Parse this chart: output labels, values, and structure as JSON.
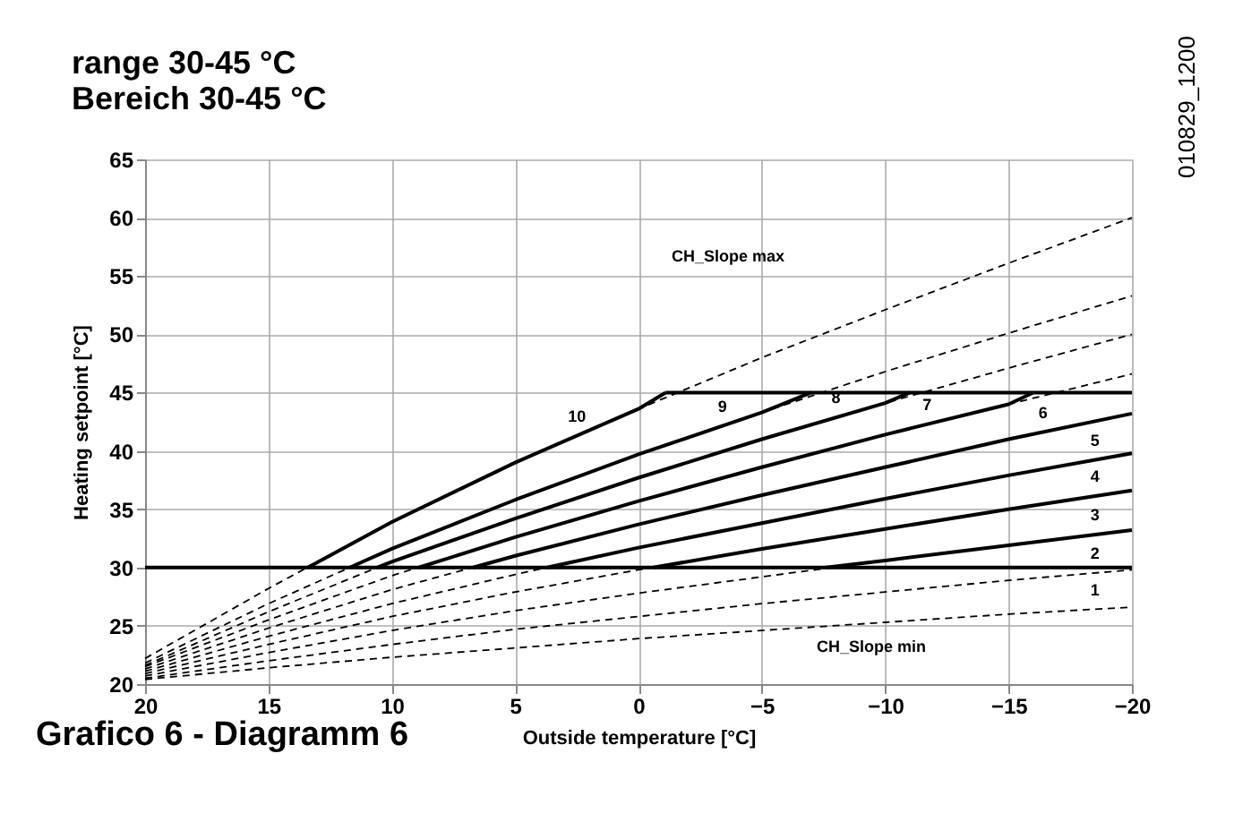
{
  "chart_data": {
    "type": "line",
    "title": "range 30-45 °C",
    "subtitle": "Bereich 30-45 °C",
    "xlabel": "Outside temperature [°C]",
    "ylabel": "Heating setpoint [°C]",
    "x": [
      20,
      15,
      10,
      5,
      0,
      -5,
      -10,
      -15,
      -20
    ],
    "xlim": [
      20,
      -20
    ],
    "xticks": [
      20,
      15,
      10,
      5,
      0,
      -5,
      -10,
      -15,
      -20
    ],
    "ylim": [
      20,
      65
    ],
    "yticks": [
      20,
      25,
      30,
      35,
      40,
      45,
      50,
      55,
      60,
      65
    ],
    "grid": true,
    "series": [
      {
        "color": "#000000",
        "line_style": "dashed",
        "values": [
          20.4,
          21.4,
          22.3,
          23.1,
          23.9,
          24.6,
          25.3,
          26.0,
          26.6
        ]
      },
      {
        "color": "#000000",
        "line_style": "dashed",
        "values": [
          20.5,
          22.0,
          23.4,
          24.7,
          25.8,
          26.9,
          27.9,
          28.9,
          29.8
        ]
      },
      {
        "color": "#000000",
        "line_style": "dashed",
        "values": [
          20.7,
          22.7,
          24.6,
          26.3,
          27.8,
          29.2,
          30.6,
          31.9,
          33.2
        ]
      },
      {
        "color": "#000000",
        "line_style": "dashed",
        "values": [
          20.9,
          23.4,
          25.8,
          27.9,
          29.8,
          31.6,
          33.3,
          35.0,
          36.6
        ]
      },
      {
        "color": "#000000",
        "line_style": "dashed",
        "values": [
          21.1,
          24.1,
          26.9,
          29.4,
          31.7,
          33.8,
          35.9,
          37.9,
          39.8
        ]
      },
      {
        "color": "#000000",
        "line_style": "dashed",
        "values": [
          21.3,
          24.8,
          28.1,
          31.0,
          33.7,
          36.2,
          38.6,
          41.0,
          43.2
        ]
      },
      {
        "color": "#000000",
        "line_style": "dashed",
        "values": [
          21.5,
          25.5,
          29.3,
          32.6,
          35.7,
          38.6,
          41.4,
          44.0,
          46.6
        ]
      },
      {
        "color": "#000000",
        "line_style": "dashed",
        "values": [
          21.6,
          26.2,
          30.5,
          34.2,
          37.7,
          41.0,
          44.1,
          47.1,
          50.0
        ]
      },
      {
        "color": "#000000",
        "line_style": "dashed",
        "values": [
          21.8,
          26.9,
          31.6,
          35.8,
          39.7,
          43.3,
          46.8,
          50.1,
          53.3
        ]
      },
      {
        "color": "#000000",
        "line_style": "dashed",
        "values": [
          22.2,
          28.2,
          33.9,
          39.0,
          43.6,
          48.0,
          52.1,
          56.1,
          60.0
        ]
      },
      {
        "color": "#000000",
        "line_style": "solid",
        "x": [
          -7.6,
          -10,
          -15,
          -20
        ],
        "values": [
          30,
          30.6,
          31.9,
          33.2
        ]
      },
      {
        "color": "#000000",
        "line_style": "solid",
        "x": [
          -0.6,
          -5,
          -10,
          -15,
          -20
        ],
        "values": [
          30,
          31.6,
          33.3,
          35.0,
          36.6
        ]
      },
      {
        "color": "#000000",
        "line_style": "solid",
        "x": [
          3.7,
          0,
          -5,
          -10,
          -15,
          -20
        ],
        "values": [
          30,
          31.7,
          33.8,
          35.9,
          37.9,
          39.8
        ]
      },
      {
        "color": "#000000",
        "line_style": "solid",
        "x": [
          6.7,
          5,
          0,
          -5,
          -10,
          -15,
          -20
        ],
        "values": [
          30,
          31.0,
          33.7,
          36.2,
          38.6,
          41.0,
          43.2
        ]
      },
      {
        "color": "#000000",
        "line_style": "solid",
        "x": [
          8.9,
          5,
          0,
          -5,
          -10,
          -15,
          -16
        ],
        "values": [
          30,
          32.6,
          35.7,
          38.6,
          41.4,
          44.0,
          45
        ]
      },
      {
        "color": "#000000",
        "line_style": "solid",
        "x": [
          10.6,
          10,
          5,
          0,
          -5,
          -10,
          -11
        ],
        "values": [
          30,
          30.5,
          34.2,
          37.7,
          41.0,
          44.1,
          45
        ]
      },
      {
        "color": "#000000",
        "line_style": "solid",
        "x": [
          11.7,
          10,
          5,
          0,
          -5,
          -7
        ],
        "values": [
          30,
          31.6,
          35.8,
          39.7,
          43.3,
          45
        ]
      },
      {
        "color": "#000000",
        "line_style": "solid",
        "x": [
          13.4,
          10,
          5,
          0,
          -1.1
        ],
        "values": [
          30,
          33.9,
          39.0,
          43.6,
          45
        ]
      },
      {
        "color": "#000000",
        "line_style": "solid",
        "x": [
          -1.1,
          -20
        ],
        "values": [
          45,
          45
        ]
      },
      {
        "color": "#000000",
        "line_style": "solid",
        "x": [
          20,
          -20
        ],
        "values": [
          30,
          30
        ]
      }
    ],
    "annotations": [
      {
        "text": "1",
        "x": -18.5,
        "y": 26.4
      },
      {
        "text": "2",
        "x": -18.5,
        "y": 29.5
      },
      {
        "text": "3",
        "x": -18.5,
        "y": 32.8
      },
      {
        "text": "4",
        "x": -18.5,
        "y": 36.1
      },
      {
        "text": "5",
        "x": -18.5,
        "y": 39.2
      },
      {
        "text": "6",
        "x": -16.4,
        "y": 41.6
      },
      {
        "text": "7",
        "x": -11.7,
        "y": 42.3
      },
      {
        "text": "8",
        "x": -8.0,
        "y": 42.9
      },
      {
        "text": "9",
        "x": -3.4,
        "y": 42.1
      },
      {
        "text": "10",
        "x": 2.5,
        "y": 41.3
      },
      "CH_Slope max",
      "CH_Slope min",
      "Grafico 6 - Diagramm 6",
      "010829_1200"
    ]
  }
}
